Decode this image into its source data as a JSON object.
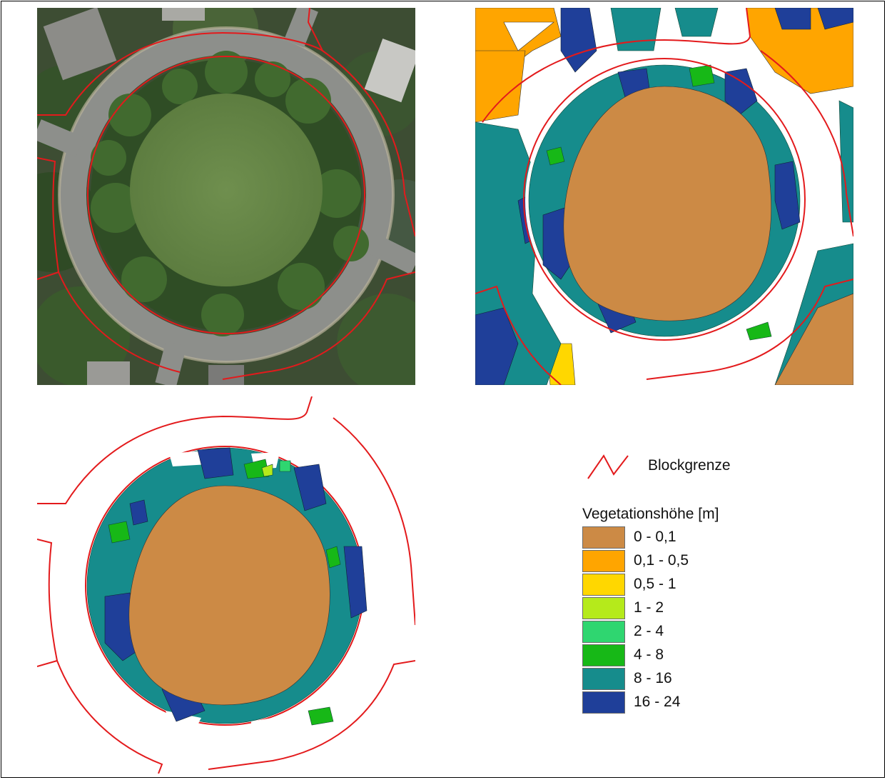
{
  "legend": {
    "boundary_label": "Blockgrenze",
    "boundary_color": "#e31a1c",
    "title": "Vegetationshöhe [m]",
    "classes": [
      {
        "label": "0 - 0,1",
        "color": "#cc8a45"
      },
      {
        "label": "0,1 - 0,5",
        "color": "#ffa500"
      },
      {
        "label": "0,5 - 1",
        "color": "#ffd700"
      },
      {
        "label": "1 - 2",
        "color": "#b5ea1b"
      },
      {
        "label": "2 - 4",
        "color": "#2fd670"
      },
      {
        "label": "4 - 8",
        "color": "#17b817"
      },
      {
        "label": "8 - 16",
        "color": "#168c8c"
      },
      {
        "label": "16 - 24",
        "color": "#1f3f99"
      }
    ]
  },
  "panels": {
    "aerial": {
      "icon": "aerial-photo"
    },
    "vegetation_full": {
      "icon": "vegetation-height-map"
    },
    "vegetation_block": {
      "icon": "vegetation-height-block-map"
    }
  }
}
